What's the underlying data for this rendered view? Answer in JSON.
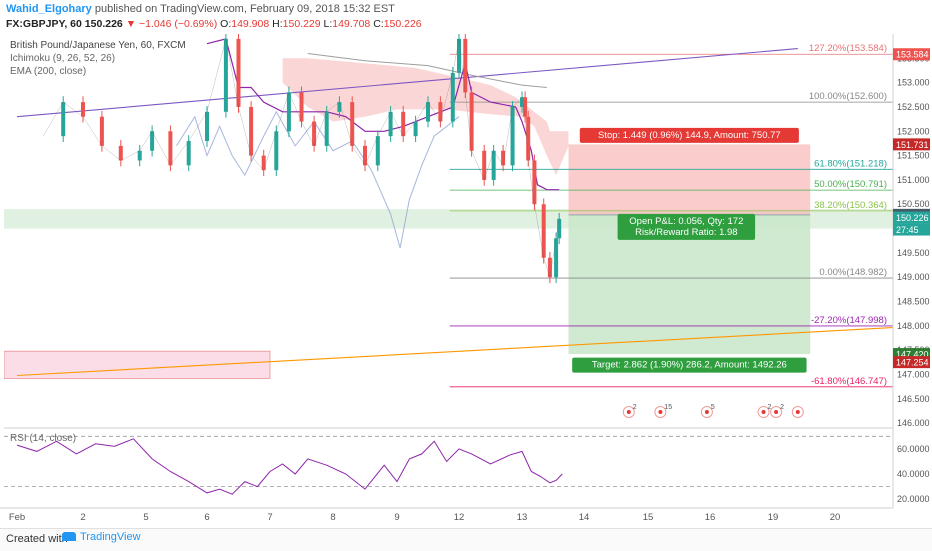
{
  "header": {
    "author": "Wahid_Elgohary",
    "published": "published on TradingView.com, February 09, 2018 15:32 EST",
    "symbol": "FX:GBPJPY, 60",
    "last": "150.226",
    "change": "▼ −1.046 (−0.69%)",
    "o_label": "O:",
    "o_value": "149.908",
    "h_label": "H:",
    "h_value": "150.229",
    "l_label": "L:",
    "l_value": "149.708",
    "c_label": "C:",
    "c_value": "150.226"
  },
  "legends": {
    "title": "British Pound/Japanese Yen, 60, FXCM",
    "ichimoku": "Ichimoku (9, 26, 52, 26)",
    "ema": "EMA (200, close)",
    "rsi": "RSI (14, close)"
  },
  "footer": {
    "created": "Created with",
    "brand": "TradingView"
  },
  "chart_data": [
    {
      "type": "line",
      "title": "British Pound/Japanese Yen, 60, FXCM",
      "ylim": [
        145.9,
        154.0
      ],
      "y_ticks": [
        "146.000",
        "146.500",
        "147.000",
        "147.500",
        "148.000",
        "148.500",
        "149.000",
        "149.500",
        "150.000",
        "150.500",
        "151.000",
        "151.500",
        "152.000",
        "152.500",
        "153.000",
        "153.500"
      ],
      "x_ticks": [
        "Feb",
        "2",
        "5",
        "6",
        "7",
        "8",
        "9",
        "12",
        "13",
        "14",
        "15",
        "16",
        "19",
        "20"
      ],
      "price_path": [
        [
          0.4,
          151.9
        ],
        [
          0.7,
          152.6
        ],
        [
          1.0,
          152.3
        ],
        [
          1.3,
          151.7
        ],
        [
          1.6,
          151.4
        ],
        [
          1.9,
          151.6
        ],
        [
          2.1,
          152.0
        ],
        [
          2.4,
          151.3
        ],
        [
          2.7,
          151.8
        ],
        [
          3.0,
          152.4
        ],
        [
          3.3,
          153.9
        ],
        [
          3.5,
          152.5
        ],
        [
          3.7,
          151.5
        ],
        [
          3.9,
          151.2
        ],
        [
          4.1,
          152.0
        ],
        [
          4.3,
          152.8
        ],
        [
          4.5,
          152.2
        ],
        [
          4.7,
          151.7
        ],
        [
          4.9,
          152.4
        ],
        [
          5.1,
          152.6
        ],
        [
          5.3,
          151.7
        ],
        [
          5.5,
          151.3
        ],
        [
          5.7,
          151.9
        ],
        [
          5.9,
          152.4
        ],
        [
          6.1,
          151.9
        ],
        [
          6.3,
          152.2
        ],
        [
          6.5,
          152.6
        ],
        [
          6.7,
          152.2
        ],
        [
          6.9,
          153.2
        ],
        [
          7.0,
          153.9
        ],
        [
          7.1,
          152.8
        ],
        [
          7.2,
          151.6
        ],
        [
          7.4,
          151.0
        ],
        [
          7.55,
          151.6
        ],
        [
          7.7,
          151.3
        ],
        [
          7.85,
          152.5
        ],
        [
          8.0,
          152.7
        ],
        [
          8.05,
          152.3
        ],
        [
          8.1,
          151.4
        ],
        [
          8.2,
          150.5
        ],
        [
          8.35,
          149.4
        ],
        [
          8.45,
          149.0
        ],
        [
          8.55,
          149.8
        ],
        [
          8.6,
          150.2
        ]
      ],
      "ema200_path": [
        [
          4.6,
          153.6
        ],
        [
          5.5,
          153.45
        ],
        [
          6.5,
          153.35
        ],
        [
          7.2,
          153.15
        ],
        [
          8.0,
          152.95
        ],
        [
          8.4,
          152.9
        ]
      ],
      "tenkan_path": [
        [
          3.0,
          153.8
        ],
        [
          3.3,
          153.9
        ],
        [
          3.5,
          152.9
        ],
        [
          3.7,
          152.9
        ],
        [
          3.9,
          152.6
        ],
        [
          4.2,
          152.4
        ],
        [
          4.6,
          152.4
        ],
        [
          4.9,
          152.4
        ],
        [
          5.2,
          152.3
        ],
        [
          5.5,
          152.0
        ],
        [
          5.8,
          152.0
        ],
        [
          6.1,
          152.1
        ],
        [
          6.5,
          152.3
        ],
        [
          6.9,
          152.5
        ],
        [
          7.1,
          153.4
        ],
        [
          7.2,
          152.8
        ],
        [
          7.5,
          152.6
        ],
        [
          7.9,
          152.5
        ],
        [
          8.0,
          152.2
        ],
        [
          8.15,
          151.6
        ],
        [
          8.25,
          150.9
        ],
        [
          8.4,
          150.8
        ],
        [
          8.6,
          150.8
        ]
      ],
      "chikou_path": [
        [
          2.5,
          151.7
        ],
        [
          2.8,
          152.3
        ],
        [
          3.0,
          151.5
        ],
        [
          3.2,
          152.1
        ],
        [
          3.4,
          151.5
        ],
        [
          3.6,
          151.1
        ],
        [
          3.9,
          151.9
        ],
        [
          4.1,
          152.4
        ],
        [
          4.4,
          151.7
        ],
        [
          4.7,
          152.2
        ],
        [
          5.0,
          151.6
        ],
        [
          5.3,
          151.8
        ],
        [
          5.6,
          151.2
        ],
        [
          5.9,
          150.3
        ],
        [
          6.05,
          149.6
        ],
        [
          6.2,
          150.6
        ],
        [
          6.4,
          151.3
        ],
        [
          6.6,
          151.9
        ],
        [
          6.8,
          152.1
        ],
        [
          7.0,
          152.3
        ]
      ],
      "cloud_polygon": [
        [
          4.2,
          153.5
        ],
        [
          4.6,
          153.5
        ],
        [
          5.5,
          153.4
        ],
        [
          6.3,
          153.3
        ],
        [
          7.0,
          153.1
        ],
        [
          7.5,
          152.95
        ],
        [
          7.9,
          152.7
        ],
        [
          8.4,
          152.2
        ],
        [
          8.45,
          152.0
        ],
        [
          8.75,
          152.0
        ],
        [
          8.75,
          151.7
        ],
        [
          8.55,
          151.1
        ],
        [
          8.4,
          151.5
        ],
        [
          8.2,
          152.1
        ],
        [
          8.0,
          152.3
        ],
        [
          7.5,
          152.35
        ],
        [
          6.8,
          152.45
        ],
        [
          6.0,
          152.45
        ],
        [
          5.5,
          152.3
        ],
        [
          5.0,
          152.2
        ],
        [
          4.6,
          152.5
        ],
        [
          4.2,
          153.0
        ]
      ],
      "trendline_purple": [
        [
          0,
          152.3
        ],
        [
          12.4,
          153.7
        ]
      ],
      "trendline_orange": [
        [
          0,
          146.98
        ],
        [
          14.15,
          147.98
        ]
      ],
      "fibonacci": [
        {
          "level": "127.20%",
          "value": 153.584,
          "label": "127.20%(153.584)",
          "color": "#e57373"
        },
        {
          "level": "100.00%",
          "value": 152.6,
          "label": "100.00%(152.600)",
          "color": "#888888"
        },
        {
          "level": "61.80%",
          "value": 151.218,
          "label": "61.80%(151.218)",
          "color": "#26a69a"
        },
        {
          "level": "50.00%",
          "value": 150.791,
          "label": "50.00%(150.791)",
          "color": "#4caf50"
        },
        {
          "level": "38.20%",
          "value": 150.364,
          "label": "38.20%(150.364)",
          "color": "#8bc34a"
        },
        {
          "level": "0.00%",
          "value": 148.982,
          "label": "0.00%(148.982)",
          "color": "#888888"
        },
        {
          "level": "-27.20%",
          "value": 147.998,
          "label": "-27.20%(147.998)",
          "color": "#9c27b0"
        },
        {
          "level": "-61.80%",
          "value": 146.747,
          "label": "-61.80%(146.747)",
          "color": "#e91e63"
        }
      ],
      "zone_green": [
        150.0,
        150.4
      ],
      "zone_red": [
        146.92,
        147.48
      ],
      "position": {
        "entry": 150.282,
        "stop": 151.731,
        "target": 147.42,
        "x_start": 8.75,
        "x_end": 12.6,
        "stop_label": "Stop: 1.449 (0.96%) 144.9, Amount: 750.77",
        "pnl_label": "Open P&L: 0.056, Qty: 172",
        "rr_label": "Risk/Reward Ratio: 1.98",
        "target_label": "Target: 2.862 (1.90%) 286.2, Amount: 1492.26"
      },
      "price_tags": [
        {
          "value": 153.584,
          "text": "153.584",
          "color": "#ef5350"
        },
        {
          "value": 151.731,
          "text": "151.731",
          "color": "#c62828"
        },
        {
          "value": 150.282,
          "text": "150.282",
          "color": "#455a64"
        },
        {
          "value": 150.226,
          "text": "150.226",
          "color": "#26a69a"
        },
        {
          "value": 149.98,
          "text": "27:45",
          "color": "#26a69a"
        },
        {
          "value": 147.42,
          "text": "147.420",
          "color": "#2e7d32"
        },
        {
          "value": 147.254,
          "text": "147.254",
          "color": "#c62828"
        }
      ],
      "events": [
        {
          "x": 9.7,
          "count": "2"
        },
        {
          "x": 10.2,
          "count": "15"
        },
        {
          "x": 10.95,
          "count": "5"
        },
        {
          "x": 11.85,
          "count": "2"
        },
        {
          "x": 12.05,
          "count": "2"
        },
        {
          "x": 12.4,
          "count": ""
        }
      ]
    },
    {
      "type": "line",
      "title": "RSI (14, close)",
      "ylim": [
        13,
        75
      ],
      "y_ticks": [
        "20.0000",
        "40.0000",
        "60.0000"
      ],
      "bands": [
        70,
        30
      ],
      "values": [
        [
          0,
          63
        ],
        [
          0.3,
          58
        ],
        [
          0.6,
          66
        ],
        [
          0.9,
          56
        ],
        [
          1.2,
          64
        ],
        [
          1.5,
          62
        ],
        [
          1.8,
          68
        ],
        [
          2.1,
          52
        ],
        [
          2.4,
          42
        ],
        [
          2.7,
          34
        ],
        [
          3.0,
          25
        ],
        [
          3.2,
          28
        ],
        [
          3.4,
          24
        ],
        [
          3.6,
          34
        ],
        [
          3.8,
          30
        ],
        [
          4.0,
          42
        ],
        [
          4.2,
          48
        ],
        [
          4.4,
          40
        ],
        [
          4.6,
          52
        ],
        [
          4.9,
          47
        ],
        [
          5.2,
          40
        ],
        [
          5.5,
          28
        ],
        [
          5.8,
          47
        ],
        [
          6.0,
          34
        ],
        [
          6.2,
          52
        ],
        [
          6.4,
          56
        ],
        [
          6.6,
          66
        ],
        [
          6.8,
          50
        ],
        [
          7.0,
          60
        ],
        [
          7.2,
          56
        ],
        [
          7.5,
          48
        ],
        [
          7.8,
          55
        ],
        [
          8.0,
          58
        ],
        [
          8.15,
          42
        ],
        [
          8.3,
          38
        ],
        [
          8.45,
          33
        ],
        [
          8.55,
          35
        ],
        [
          8.65,
          40
        ]
      ]
    }
  ]
}
